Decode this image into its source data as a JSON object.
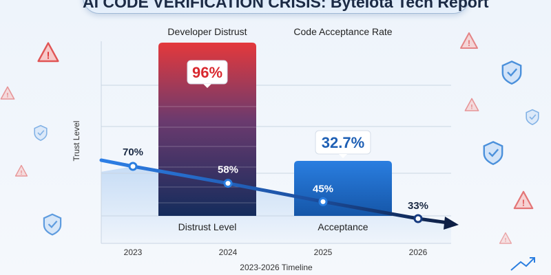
{
  "title": "AI CODE VERIFICATION CRISIS: ByteIota Tech Report",
  "chart_data": {
    "type": "bar+line",
    "categories": [
      "2023",
      "2024",
      "2025",
      "2026"
    ],
    "xlabel": "2023-2026 Timeline",
    "ylabel": "Trust Level",
    "grid": true,
    "series": [
      {
        "name": "Developer Distrust",
        "type": "bar",
        "category": "2024",
        "value": 96,
        "value_label": "96%",
        "bar_label": "Distrust Level",
        "color": "#d83a3f"
      },
      {
        "name": "Code Acceptance Rate",
        "type": "bar",
        "category": "2025",
        "value": 32.7,
        "value_label": "32.7%",
        "bar_label": "Acceptance",
        "color": "#1e6fd0"
      },
      {
        "type": "line",
        "values": [
          70,
          58,
          45,
          33
        ],
        "labels": [
          "70%",
          "58%",
          "45%",
          "33%"
        ],
        "color": "#2a78e0"
      }
    ]
  },
  "icons": [
    "warning-icon",
    "shield-check-icon",
    "trend-up-icon"
  ]
}
